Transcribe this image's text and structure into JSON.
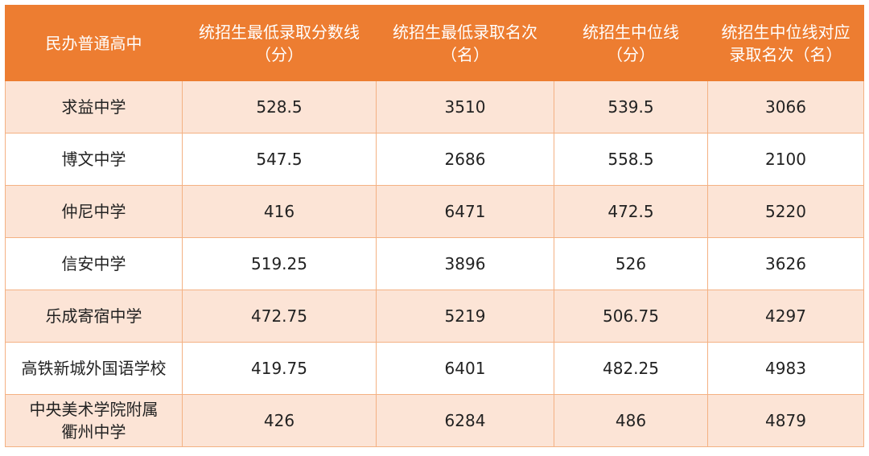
{
  "table": {
    "header": [
      [
        "民办普通高中"
      ],
      [
        "统招生最低录取分数线",
        "（分）"
      ],
      [
        "统招生最低录取名次",
        "（名）"
      ],
      [
        "统招生中位线",
        "（分）"
      ],
      [
        "统招生中位线对应",
        "录取名次（名）"
      ]
    ],
    "rows": [
      [
        [
          "求益中学"
        ],
        [
          "528.5"
        ],
        [
          "3510"
        ],
        [
          "539.5"
        ],
        [
          "3066"
        ]
      ],
      [
        [
          "博文中学"
        ],
        [
          "547.5"
        ],
        [
          "2686"
        ],
        [
          "558.5"
        ],
        [
          "2100"
        ]
      ],
      [
        [
          "仲尼中学"
        ],
        [
          "416"
        ],
        [
          "6471"
        ],
        [
          "472.5"
        ],
        [
          "5220"
        ]
      ],
      [
        [
          "信安中学"
        ],
        [
          "519.25"
        ],
        [
          "3896"
        ],
        [
          "526"
        ],
        [
          "3626"
        ]
      ],
      [
        [
          "乐成寄宿中学"
        ],
        [
          "472.75"
        ],
        [
          "5219"
        ],
        [
          "506.75"
        ],
        [
          "4297"
        ]
      ],
      [
        [
          "高铁新城外国语学校"
        ],
        [
          "419.75"
        ],
        [
          "6401"
        ],
        [
          "482.25"
        ],
        [
          "4983"
        ]
      ],
      [
        [
          "中央美术学院附属",
          "衢州中学"
        ],
        [
          "426"
        ],
        [
          "6284"
        ],
        [
          "486"
        ],
        [
          "4879"
        ]
      ]
    ]
  }
}
